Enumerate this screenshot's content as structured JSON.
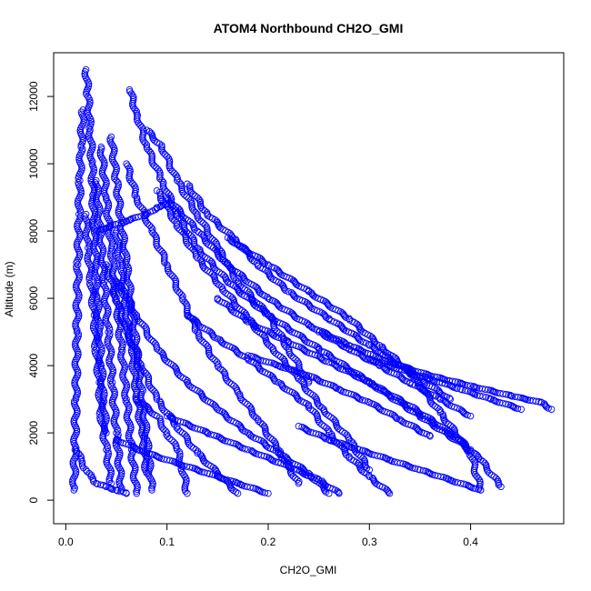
{
  "chart_data": {
    "type": "scatter",
    "title": "ATOM4 Northbound CH2O_GMI",
    "xlabel": "CH2O_GMI",
    "ylabel": "Altitude (m)",
    "xlim": [
      -0.012,
      0.492
    ],
    "ylim": [
      -700,
      13300
    ],
    "xticks": [
      0.0,
      0.1,
      0.2,
      0.3,
      0.4
    ],
    "xtick_labels": [
      "0.0",
      "0.1",
      "0.2",
      "0.3",
      "0.4"
    ],
    "yticks": [
      0,
      2000,
      4000,
      6000,
      8000,
      10000,
      12000
    ],
    "ytick_labels": [
      "0",
      "2000",
      "4000",
      "6000",
      "8000",
      "10000",
      "12000"
    ],
    "grid": false,
    "legend": "none",
    "marker": "open-circle",
    "color": "#0000ff",
    "series": [
      {
        "x": [
          0.02,
          0.022,
          0.024,
          0.026,
          0.027,
          0.028,
          0.03,
          0.031,
          0.033,
          0.035,
          0.037,
          0.04
        ],
        "y": [
          12800,
          12000,
          11000,
          10000,
          9000,
          8000,
          7000,
          6000,
          5000,
          4000,
          3000,
          2000
        ]
      },
      {
        "x": [
          0.017,
          0.015,
          0.014,
          0.013,
          0.012,
          0.011,
          0.01,
          0.009,
          0.008
        ],
        "y": [
          11600,
          10500,
          9500,
          8500,
          7000,
          5000,
          3000,
          1500,
          300
        ]
      },
      {
        "x": [
          0.063,
          0.07,
          0.08,
          0.095,
          0.11,
          0.13,
          0.16,
          0.2,
          0.25,
          0.3,
          0.35,
          0.4
        ],
        "y": [
          12200,
          11500,
          10500,
          9500,
          8500,
          7500,
          6500,
          5500,
          4500,
          3500,
          2500,
          1500
        ]
      },
      {
        "x": [
          0.08,
          0.095,
          0.11,
          0.13,
          0.15,
          0.17,
          0.2,
          0.22,
          0.24
        ],
        "y": [
          11000,
          10500,
          9500,
          8500,
          7500,
          6500,
          5500,
          4500,
          3500
        ]
      },
      {
        "x": [
          0.12,
          0.14,
          0.165,
          0.19,
          0.22,
          0.26,
          0.3,
          0.34,
          0.38
        ],
        "y": [
          9400,
          8500,
          7800,
          7000,
          6200,
          5400,
          4600,
          3800,
          3000
        ]
      },
      {
        "x": [
          0.1,
          0.13,
          0.16,
          0.2,
          0.24,
          0.28,
          0.32,
          0.36,
          0.4,
          0.44,
          0.47,
          0.48
        ],
        "y": [
          9000,
          8000,
          7000,
          6000,
          5200,
          4600,
          4100,
          3700,
          3400,
          3100,
          2900,
          2700
        ]
      },
      {
        "x": [
          0.15,
          0.18,
          0.22,
          0.26,
          0.3,
          0.34,
          0.38,
          0.41,
          0.43
        ],
        "y": [
          6000,
          5300,
          4700,
          4100,
          3500,
          2800,
          2000,
          1200,
          400
        ]
      },
      {
        "x": [
          0.12,
          0.15,
          0.18,
          0.21,
          0.24,
          0.26,
          0.28,
          0.3,
          0.32
        ],
        "y": [
          5500,
          4800,
          4200,
          3500,
          2800,
          2000,
          1300,
          700,
          200
        ]
      },
      {
        "x": [
          0.05,
          0.07,
          0.09,
          0.12,
          0.15,
          0.18,
          0.21,
          0.24,
          0.26
        ],
        "y": [
          6500,
          5500,
          4500,
          3500,
          2700,
          2000,
          1400,
          800,
          200
        ]
      },
      {
        "x": [
          0.04,
          0.05,
          0.06,
          0.075,
          0.09,
          0.11,
          0.13,
          0.15,
          0.17
        ],
        "y": [
          7000,
          6000,
          5000,
          4000,
          3000,
          2200,
          1400,
          800,
          200
        ]
      },
      {
        "x": [
          0.035,
          0.04,
          0.045,
          0.05,
          0.055,
          0.06,
          0.065,
          0.07
        ],
        "y": [
          10500,
          9000,
          7500,
          6000,
          4500,
          3000,
          1500,
          200
        ]
      },
      {
        "x": [
          0.045,
          0.05,
          0.055,
          0.06,
          0.065,
          0.07,
          0.075,
          0.08,
          0.085
        ],
        "y": [
          10800,
          9500,
          8200,
          7000,
          5800,
          4500,
          3200,
          1800,
          300
        ]
      },
      {
        "x": [
          0.03,
          0.034,
          0.038,
          0.042,
          0.046,
          0.05,
          0.055
        ],
        "y": [
          9500,
          8000,
          6500,
          5000,
          3500,
          2000,
          300
        ]
      },
      {
        "x": [
          0.06,
          0.07,
          0.085,
          0.1,
          0.115,
          0.13,
          0.15,
          0.17,
          0.19,
          0.21,
          0.23
        ],
        "y": [
          10000,
          9000,
          8000,
          7000,
          6000,
          5000,
          4000,
          3200,
          2400,
          1500,
          500
        ]
      },
      {
        "x": [
          0.09,
          0.11,
          0.13,
          0.155,
          0.18,
          0.205,
          0.23,
          0.255,
          0.28,
          0.3
        ],
        "y": [
          9200,
          8200,
          7200,
          6300,
          5400,
          4500,
          3600,
          2700,
          1800,
          900
        ]
      },
      {
        "x": [
          0.16,
          0.2,
          0.24,
          0.28,
          0.31,
          0.34,
          0.37,
          0.4,
          0.41
        ],
        "y": [
          7800,
          7000,
          6200,
          5400,
          4600,
          3800,
          2600,
          1400,
          300
        ]
      },
      {
        "x": [
          0.05,
          0.055,
          0.06,
          0.065,
          0.07,
          0.075,
          0.08
        ],
        "y": [
          8000,
          6800,
          5600,
          4400,
          3200,
          2000,
          800
        ]
      },
      {
        "x": [
          0.02,
          0.022,
          0.025,
          0.028,
          0.03,
          0.033,
          0.035,
          0.04,
          0.045
        ],
        "y": [
          8500,
          7500,
          6500,
          5500,
          4500,
          3500,
          2500,
          1500,
          500
        ]
      },
      {
        "x": [
          0.01,
          0.015,
          0.02,
          0.025,
          0.03,
          0.04,
          0.05,
          0.06
        ],
        "y": [
          1500,
          1200,
          900,
          700,
          500,
          400,
          300,
          200
        ]
      },
      {
        "x": [
          0.23,
          0.26,
          0.29,
          0.32,
          0.35,
          0.38,
          0.41
        ],
        "y": [
          2200,
          1800,
          1500,
          1200,
          900,
          600,
          300
        ]
      },
      {
        "x": [
          0.1,
          0.14,
          0.18,
          0.22,
          0.25,
          0.27
        ],
        "y": [
          2500,
          2000,
          1500,
          1000,
          600,
          200
        ]
      },
      {
        "x": [
          0.05,
          0.08,
          0.11,
          0.14,
          0.17,
          0.2
        ],
        "y": [
          1800,
          1400,
          1100,
          800,
          500,
          200
        ]
      },
      {
        "x": [
          0.07,
          0.09,
          0.1,
          0.11,
          0.115,
          0.12
        ],
        "y": [
          3000,
          2500,
          2000,
          1500,
          1000,
          200
        ]
      },
      {
        "x": [
          0.03,
          0.06,
          0.08,
          0.09,
          0.1
        ],
        "y": [
          8000,
          8300,
          8500,
          8700,
          8800
        ]
      },
      {
        "x": [
          0.18,
          0.21,
          0.24,
          0.27,
          0.3,
          0.33,
          0.36
        ],
        "y": [
          4300,
          4000,
          3700,
          3300,
          2900,
          2400,
          1900
        ]
      },
      {
        "x": [
          0.25,
          0.28,
          0.31,
          0.34,
          0.37,
          0.4
        ],
        "y": [
          5000,
          4500,
          4000,
          3500,
          3000,
          2500
        ]
      },
      {
        "x": [
          0.3,
          0.33,
          0.36,
          0.39,
          0.42,
          0.45
        ],
        "y": [
          4200,
          3900,
          3600,
          3300,
          3000,
          2700
        ]
      }
    ]
  }
}
